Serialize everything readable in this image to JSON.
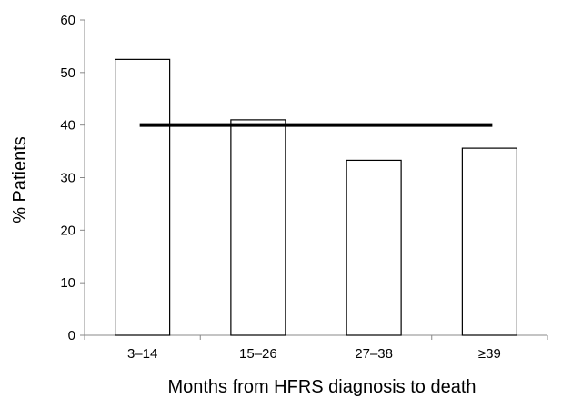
{
  "chart_data": {
    "type": "bar",
    "title": "",
    "xlabel": "Months from HFRS diagnosis to death",
    "ylabel": "% Patients",
    "categories": [
      "3–14",
      "15–26",
      "27–38",
      "≥39"
    ],
    "values": [
      52.5,
      41,
      33.3,
      35.6
    ],
    "ylim": [
      0,
      60
    ],
    "yticks": [
      "0",
      "10",
      "20",
      "30",
      "40",
      "50",
      "60"
    ],
    "reference_line": {
      "value": 40,
      "from_category": 0,
      "to_category": 3
    },
    "grid": false,
    "legend": "none",
    "colors": {
      "bar_fill": "#ffffff",
      "bar_stroke": "#000000",
      "line": "#000000"
    }
  }
}
